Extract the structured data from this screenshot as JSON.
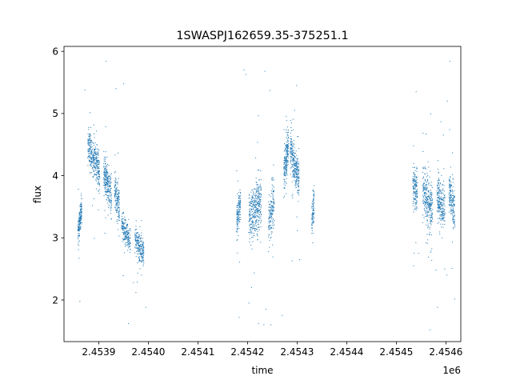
{
  "chart_data": {
    "type": "scatter",
    "title": "1SWASPJ162659.35-375251.1",
    "xlabel": "time",
    "ylabel": "flux",
    "x_offset_label": "1e6",
    "xlim": [
      2.45383,
      2.45463
    ],
    "ylim": [
      1.33,
      6.08
    ],
    "x_ticks": [
      2.4539,
      2.454,
      2.4541,
      2.4542,
      2.4543,
      2.4544,
      2.4545,
      2.4546
    ],
    "x_tick_labels": [
      "2.4539",
      "2.4540",
      "2.4541",
      "2.4542",
      "2.4543",
      "2.4544",
      "2.4545",
      "2.4546"
    ],
    "y_ticks": [
      2,
      3,
      4,
      5,
      6
    ],
    "y_tick_labels": [
      "2",
      "3",
      "4",
      "5",
      "6"
    ],
    "grid": false,
    "series_color": "#1f77b4",
    "clusters": [
      {
        "x_center": 2.453862,
        "x_width": 8e-06,
        "y_start": 3.1,
        "y_end": 3.45,
        "spread": 0.1,
        "count": 160
      },
      {
        "x_center": 2.45389,
        "x_width": 2.4e-05,
        "y_start": 4.5,
        "y_end": 4.05,
        "spread": 0.15,
        "count": 350
      },
      {
        "x_center": 2.453918,
        "x_width": 1.6e-05,
        "y_start": 4.05,
        "y_end": 3.7,
        "spread": 0.15,
        "count": 260
      },
      {
        "x_center": 2.453937,
        "x_width": 1e-05,
        "y_start": 3.8,
        "y_end": 3.4,
        "spread": 0.16,
        "count": 160
      },
      {
        "x_center": 2.453955,
        "x_width": 1.8e-05,
        "y_start": 3.2,
        "y_end": 2.95,
        "spread": 0.1,
        "count": 200
      },
      {
        "x_center": 2.453982,
        "x_width": 1.8e-05,
        "y_start": 3.0,
        "y_end": 2.75,
        "spread": 0.12,
        "count": 220
      },
      {
        "x_center": 2.454182,
        "x_width": 8e-06,
        "y_start": 3.25,
        "y_end": 3.55,
        "spread": 0.15,
        "count": 140
      },
      {
        "x_center": 2.454215,
        "x_width": 2.6e-05,
        "y_start": 3.3,
        "y_end": 3.6,
        "spread": 0.2,
        "count": 380
      },
      {
        "x_center": 2.454248,
        "x_width": 1.2e-05,
        "y_start": 3.3,
        "y_end": 3.6,
        "spread": 0.18,
        "count": 160
      },
      {
        "x_center": 2.454278,
        "x_width": 1e-05,
        "y_start": 4.0,
        "y_end": 4.5,
        "spread": 0.16,
        "count": 200
      },
      {
        "x_center": 2.454295,
        "x_width": 1.8e-05,
        "y_start": 4.45,
        "y_end": 3.9,
        "spread": 0.17,
        "count": 300
      },
      {
        "x_center": 2.454332,
        "x_width": 5e-06,
        "y_start": 3.3,
        "y_end": 3.55,
        "spread": 0.15,
        "count": 90
      },
      {
        "x_center": 2.454538,
        "x_width": 1e-05,
        "y_start": 3.9,
        "y_end": 3.7,
        "spread": 0.15,
        "count": 150
      },
      {
        "x_center": 2.454563,
        "x_width": 2e-05,
        "y_start": 3.8,
        "y_end": 3.4,
        "spread": 0.2,
        "count": 300
      },
      {
        "x_center": 2.45459,
        "x_width": 1.6e-05,
        "y_start": 3.7,
        "y_end": 3.4,
        "spread": 0.18,
        "count": 240
      },
      {
        "x_center": 2.454612,
        "x_width": 1.2e-05,
        "y_start": 3.8,
        "y_end": 3.4,
        "spread": 0.18,
        "count": 180
      }
    ],
    "outliers": [
      [
        2.453862,
        1.98
      ],
      [
        2.453891,
        2.99
      ],
      [
        2.453872,
        5.38
      ],
      [
        2.453915,
        5.84
      ],
      [
        2.453935,
        5.4
      ],
      [
        2.45395,
        5.48
      ],
      [
        2.45396,
        1.62
      ],
      [
        2.45397,
        2.28
      ],
      [
        2.453995,
        1.88
      ],
      [
        2.453975,
        2.12
      ],
      [
        2.454183,
        1.72
      ],
      [
        2.454193,
        5.7
      ],
      [
        2.454197,
        5.63
      ],
      [
        2.454222,
        1.62
      ],
      [
        2.454233,
        1.6
      ],
      [
        2.454247,
        1.6
      ],
      [
        2.454235,
        5.68
      ],
      [
        2.454245,
        5.37
      ],
      [
        2.454203,
        1.95
      ],
      [
        2.454208,
        2.2
      ],
      [
        2.454237,
        1.85
      ],
      [
        2.45427,
        1.75
      ],
      [
        2.45429,
        2.63
      ],
      [
        2.454305,
        2.65
      ],
      [
        2.454295,
        5.05
      ],
      [
        2.45454,
        5.35
      ],
      [
        2.454535,
        2.55
      ],
      [
        2.454568,
        1.52
      ],
      [
        2.454583,
        1.88
      ],
      [
        2.45458,
        2.48
      ],
      [
        2.454603,
        5.2
      ],
      [
        2.454608,
        5.84
      ],
      [
        2.454602,
        2.4
      ],
      [
        2.45456,
        4.67
      ],
      [
        2.454545,
        2.75
      ]
    ]
  }
}
